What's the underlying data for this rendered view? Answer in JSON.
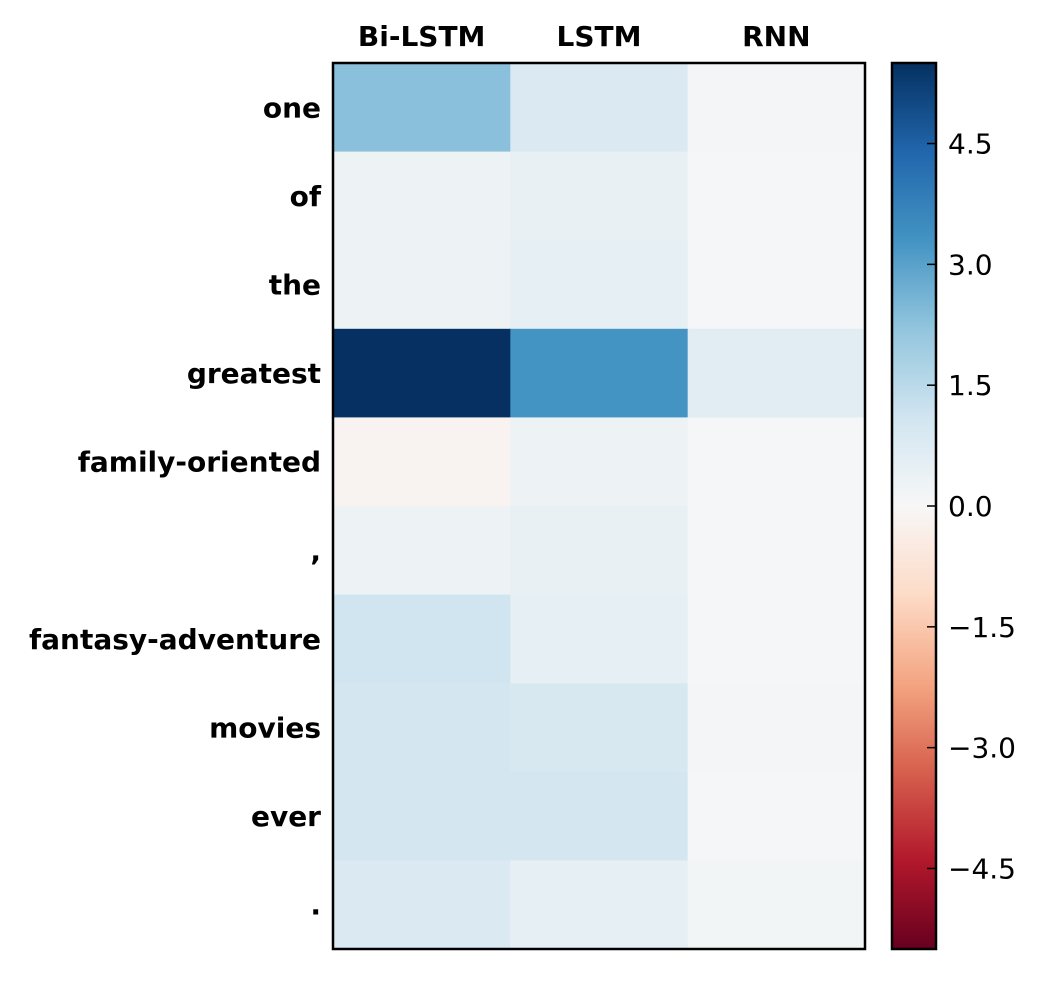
{
  "chart_data": {
    "type": "heatmap",
    "title": "",
    "xlabel": "",
    "ylabel": "",
    "columns": [
      "Bi-LSTM",
      "LSTM",
      "RNN"
    ],
    "rows": [
      "one",
      "of",
      "the",
      "greatest",
      "family-oriented",
      ",",
      "fantasy-adventure",
      "movies",
      "ever",
      "."
    ],
    "values": [
      [
        2.3,
        0.8,
        0.1
      ],
      [
        0.3,
        0.4,
        0.05
      ],
      [
        0.3,
        0.5,
        0.05
      ],
      [
        5.5,
        3.3,
        0.6
      ],
      [
        -0.15,
        0.3,
        0.05
      ],
      [
        0.3,
        0.4,
        0.05
      ],
      [
        1.1,
        0.5,
        0.05
      ],
      [
        1.0,
        0.9,
        0.1
      ],
      [
        1.0,
        1.0,
        0.05
      ],
      [
        0.8,
        0.5,
        0.15
      ]
    ],
    "colorscale": {
      "name": "RdBu",
      "vmin": -5.5,
      "vmax": 5.5,
      "ticks": [
        -4.5,
        -3.0,
        -1.5,
        0.0,
        1.5,
        3.0,
        4.5
      ],
      "tick_labels": [
        "−4.5",
        "−3.0",
        "−1.5",
        "0.0",
        "1.5",
        "3.0",
        "4.5"
      ]
    },
    "x_tick_position": "top",
    "colorbar_position": "right",
    "grid": false
  }
}
